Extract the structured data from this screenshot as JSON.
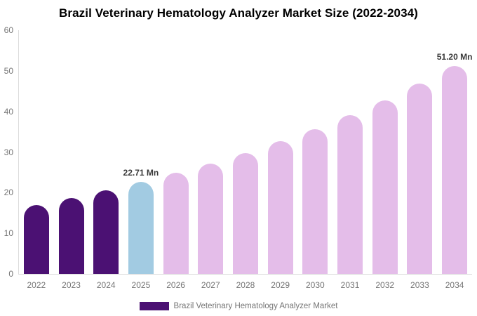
{
  "chart_data": {
    "type": "bar",
    "title": "Brazil Veterinary Hematology Analyzer Market Size (2022-2034)",
    "unit": "Mn",
    "categories": [
      "2022",
      "2023",
      "2024",
      "2025",
      "2026",
      "2027",
      "2028",
      "2029",
      "2030",
      "2031",
      "2032",
      "2033",
      "2034"
    ],
    "values": [
      17.0,
      18.7,
      20.5,
      22.71,
      24.9,
      27.2,
      29.8,
      32.6,
      35.7,
      39.0,
      42.7,
      46.8,
      51.2
    ],
    "bar_labels": [
      "",
      "",
      "",
      "22.71 Mn",
      "",
      "",
      "",
      "",
      "",
      "",
      "",
      "",
      "51.20 Mn"
    ],
    "bar_colors": [
      "#4B1173",
      "#4B1173",
      "#4B1173",
      "#A2CBE2",
      "#E4BDE9",
      "#E4BDE9",
      "#E4BDE9",
      "#E4BDE9",
      "#E4BDE9",
      "#E4BDE9",
      "#E4BDE9",
      "#E4BDE9",
      "#E4BDE9"
    ],
    "yticks": [
      "0",
      "10",
      "20",
      "30",
      "40",
      "50",
      "60"
    ],
    "ylim": [
      0,
      60
    ],
    "xlabel": "",
    "ylabel": "",
    "grid": false,
    "legend": {
      "position": "bottom",
      "label": "Brazil Veterinary Hematology Analyzer Market",
      "swatch_color": "#4B1173"
    }
  },
  "colors": {
    "historical_bar": "#4B1173",
    "base_year_bar": "#A2CBE2",
    "forecast_bar": "#E4BDE9",
    "axis_text": "#757575",
    "value_label_text": "#3A3A3A",
    "axis_line": "#DBDBDB",
    "background": "#FFFFFF"
  }
}
